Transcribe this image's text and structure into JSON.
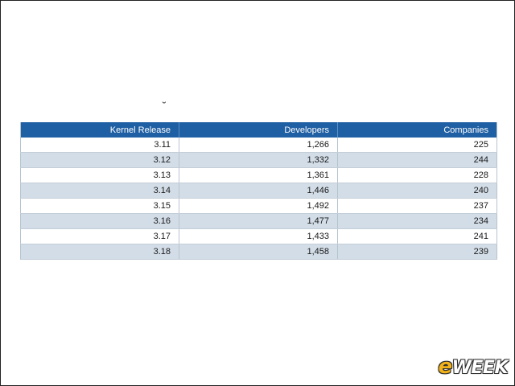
{
  "breve_mark": "˘",
  "table": {
    "headers": [
      "Kernel Release",
      "Developers",
      "Companies"
    ],
    "rows": [
      [
        "3.11",
        "1,266",
        "225"
      ],
      [
        "3.12",
        "1,332",
        "244"
      ],
      [
        "3.13",
        "1,361",
        "228"
      ],
      [
        "3.14",
        "1,446",
        "240"
      ],
      [
        "3.15",
        "1,492",
        "237"
      ],
      [
        "3.16",
        "1,477",
        "234"
      ],
      [
        "3.17",
        "1,433",
        "241"
      ],
      [
        "3.18",
        "1,458",
        "239"
      ]
    ]
  },
  "watermark": {
    "first_letter": "e",
    "rest": "WEEK"
  },
  "colors": {
    "header_bg": "#1f5fa3",
    "stripe": "#d3dde7",
    "logo_accent": "#f2b21a"
  }
}
